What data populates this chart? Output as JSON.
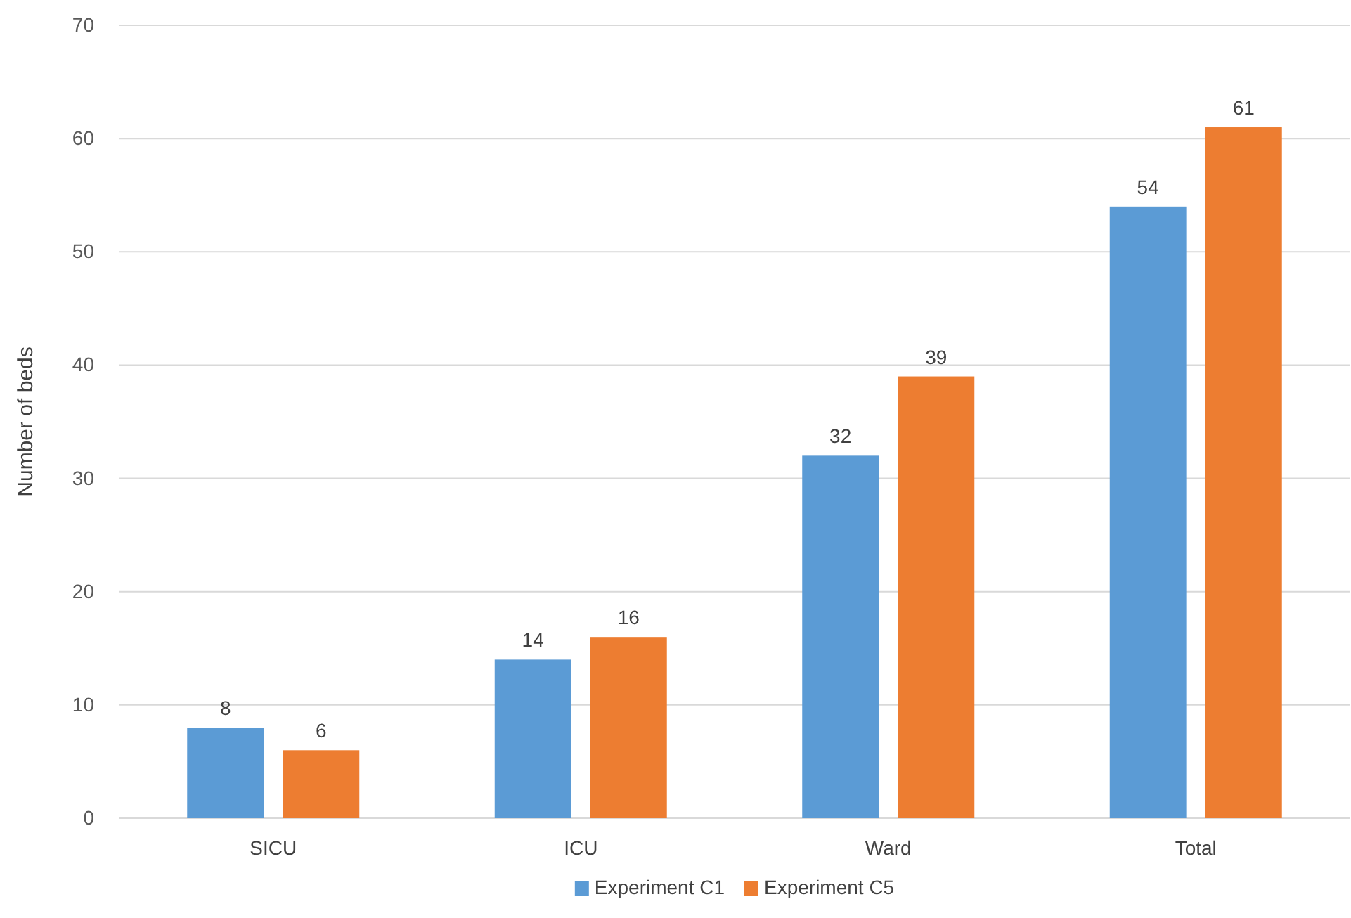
{
  "chart_data": {
    "type": "bar",
    "ylabel": "Number of beds",
    "categories": [
      "SICU",
      "ICU",
      "Ward",
      "Total"
    ],
    "series": [
      {
        "name": "Experiment C1",
        "color": "#5b9bd5",
        "values": [
          8,
          14,
          32,
          54
        ]
      },
      {
        "name": "Experiment C5",
        "color": "#ed7d31",
        "values": [
          6,
          16,
          39,
          61
        ]
      }
    ],
    "ylim": [
      0,
      70
    ],
    "yticks": [
      0,
      10,
      20,
      30,
      40,
      50,
      60,
      70
    ],
    "grid": "y",
    "legend": "bottom",
    "data_labels": true
  }
}
